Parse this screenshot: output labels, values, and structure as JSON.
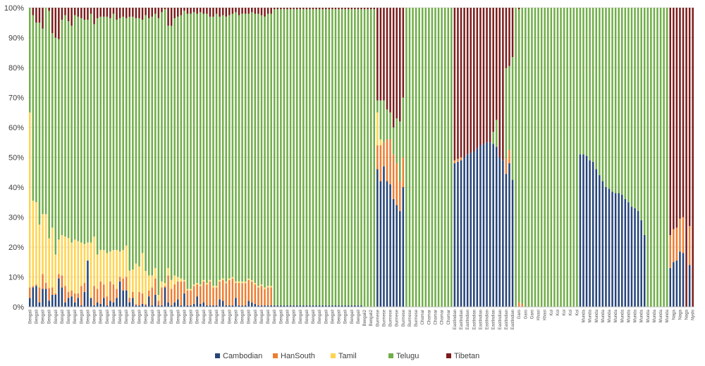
{
  "chart_data": {
    "type": "bar",
    "stacked": "percent",
    "title": "",
    "xlabel": "",
    "ylabel": "",
    "ylim": [
      0,
      100
    ],
    "y_ticks": [
      "0%",
      "10%",
      "20%",
      "30%",
      "40%",
      "50%",
      "60%",
      "70%",
      "80%",
      "90%",
      "100%"
    ],
    "grid": true,
    "legend_position": "bottom",
    "categories": [
      "Bengali",
      "Bengali",
      "Bengali",
      "Bengali",
      "Bengali",
      "Bengali",
      "Bengali",
      "Bengali",
      "Bengali",
      "Bengali",
      "Bengali",
      "Bengali",
      "Bengali",
      "Bengali",
      "Bengali",
      "Bengali",
      "Bengali",
      "Bengali",
      "Bengali",
      "Bengali",
      "Bengali",
      "Bengali",
      "Bengali",
      "Bengali",
      "Bengali",
      "Bengali",
      "Bengali",
      "Bengali",
      "Bengali",
      "Bengali",
      "Bengali",
      "Bengali",
      "Bengali",
      "Bengali",
      "Bengali",
      "Bengali",
      "Bengali",
      "Bengali",
      "Bengali",
      "Bengali",
      "Bengali",
      "Bengali",
      "Bengali",
      "Bengali",
      "Bengali",
      "Bengali",
      "Bengali",
      "Bengali",
      "Bengali",
      "Bengali",
      "Bengali",
      "Bengali",
      "Bengali",
      "Bengali",
      "Bengali",
      "Bengali",
      "Bengali",
      "Bengali",
      "Bengali",
      "Bengali",
      "Bengali",
      "Bengali",
      "Bengali",
      "Bengali",
      "Bengali",
      "Bengali",
      "Bengali",
      "Bengali",
      "Bengali",
      "Bengali",
      "Bengali",
      "Bengali",
      "Bengali",
      "Bengali",
      "Bengali",
      "Bengali",
      "Bengali",
      "Bengali",
      "Bengali",
      "Bengali",
      "Bengali",
      "Bengali",
      "Bengali",
      "Bengali",
      "Bengali",
      "Bengali",
      "Bengali",
      "Bengali",
      "Bengali",
      "Bengali",
      "Bengali",
      "Bengali",
      "Bengali",
      "Bengali",
      "Bengali",
      "Bengali",
      "Bengali",
      "Bengali",
      "Bengali",
      "Bengali",
      "Bengali",
      "Bengali",
      "Bengali",
      "Bengali",
      "Bengali2",
      "Bengali2",
      "Bengali2",
      "Bengali2",
      "Burmese",
      "Burmese",
      "Burmese",
      "Burmese",
      "Burmese",
      "Burmese",
      "Burmese",
      "Burmese",
      "Burmese",
      "Burmese",
      "Burmese",
      "Burmese",
      "Burmese",
      "Burmese",
      "Chamar",
      "Chamar",
      "Chamar",
      "Chamar",
      "Chamar",
      "Chamar",
      "Chamar",
      "Chamar",
      "Chamar",
      "Chamar",
      "EastIndian",
      "EastIndian",
      "EastIndian",
      "EastIndian",
      "EastIndian",
      "EastIndian",
      "EastIndian",
      "EastIndian",
      "EastIndian",
      "EastIndian",
      "EastIndian",
      "EastIndian",
      "EastIndian",
      "EastIndian",
      "EastIndian",
      "EastIndian",
      "EastIndian",
      "EastIndian",
      "EastIndian",
      "EastIndian",
      "Garo",
      "Garo",
      "Garo",
      "Garo",
      "Garo",
      "Garo",
      "Khasi",
      "Khasi",
      "Khasi",
      "Khasi",
      "Kol",
      "Kol",
      "Kol",
      "Kol",
      "Kol",
      "Kol",
      "Kol",
      "Kol",
      "Kol",
      "Munda",
      "Munda",
      "Munda",
      "Munda",
      "Munda",
      "Munda",
      "Munda",
      "Munda",
      "Munda",
      "Munda",
      "Munda",
      "Munda",
      "Munda",
      "Munda",
      "Munda",
      "Munda",
      "Munda",
      "Munda",
      "Munda",
      "Munda",
      "Munda",
      "Munda",
      "Munda",
      "Munda",
      "Munda",
      "Munda",
      "Munda",
      "Munda",
      "Naga",
      "Naga",
      "Naga",
      "Naga",
      "Naga",
      "Naga",
      "Nyshi",
      "Nyshi"
    ],
    "series": [
      {
        "name": "Cambodian",
        "color": "#264478",
        "values": [
          3,
          6.5,
          7,
          1.5,
          6,
          6,
          2,
          4,
          4,
          9.5,
          6.5,
          1.5,
          3,
          3.5,
          1.5,
          3,
          0.5,
          5,
          15.5,
          3,
          0.5,
          1.5,
          1,
          3,
          0.5,
          2,
          1.5,
          3,
          8.5,
          5.5,
          5.5,
          1.5,
          3,
          0.5,
          0.5,
          1,
          0.5,
          3.5,
          0.5,
          4,
          0.5,
          0.5,
          6.5,
          1.5,
          0.5,
          1.5,
          2.5,
          0.5,
          4.5,
          0.5,
          0.5,
          1,
          3.5,
          1,
          1.5,
          0.5,
          0.5,
          0.5,
          0.5,
          2.5,
          2,
          0.5,
          0.5,
          0.5,
          3,
          0.5,
          0.5,
          0.5,
          2,
          1.5,
          1,
          0.5,
          0.5,
          0.5,
          0.5,
          0.5,
          0.5,
          0.5,
          0.5,
          0.5,
          0.5,
          0.5,
          0.5,
          0.5,
          0.5,
          0.5,
          0.5,
          0.5,
          0.5,
          0.5,
          0.5,
          0.5,
          0.5,
          0.5,
          0.5,
          0.5,
          0.5,
          0.5,
          0.5,
          0.5,
          0.5,
          0.5,
          0.5,
          0.5,
          0,
          0,
          0,
          0,
          46,
          42,
          47,
          42,
          41,
          36,
          34,
          32,
          40,
          0,
          0,
          0,
          0,
          0,
          0,
          0,
          0,
          0,
          0,
          0,
          0,
          0,
          0,
          0,
          48,
          48.5,
          49,
          50,
          51,
          51.5,
          52,
          53,
          54,
          54.5,
          55,
          55,
          54.5,
          53.5,
          50,
          49,
          44,
          48,
          42.5,
          0,
          0,
          0,
          0,
          0,
          0,
          0,
          0,
          0,
          0,
          0,
          0,
          0,
          0,
          0,
          0,
          0,
          0,
          0,
          0,
          51,
          51,
          50.5,
          49,
          48.5,
          46,
          44,
          42,
          40,
          39.5,
          38.5,
          38,
          38,
          37.5,
          36,
          35,
          33.5,
          33,
          32,
          29,
          24,
          0,
          0,
          0,
          0,
          0,
          0,
          0,
          13,
          15,
          15.5,
          18.5,
          18,
          0,
          14,
          0
        ]
      },
      {
        "name": "HanSouth",
        "color": "#ED7D31",
        "values": [
          3.5,
          0.5,
          0.5,
          5,
          5,
          2,
          4,
          2.5,
          0.5,
          1.5,
          4,
          5.5,
          2,
          2,
          3,
          1.5,
          6.5,
          3,
          0,
          0,
          6.5,
          4.5,
          7.5,
          4.5,
          3,
          6.5,
          6,
          3,
          1.5,
          4,
          4.5,
          1.5,
          2,
          0.5,
          4.5,
          3.5,
          0.5,
          2,
          6,
          5.5,
          1.5,
          6,
          0.5,
          9,
          5.5,
          6,
          6,
          8,
          4,
          5,
          5,
          6,
          4,
          6,
          7,
          7,
          8,
          6,
          6,
          6,
          7,
          7.5,
          8.5,
          9,
          5,
          7.5,
          7.5,
          7.5,
          7,
          7,
          6.5,
          6,
          6.5,
          5.5,
          6,
          6,
          0,
          0,
          0,
          0,
          0,
          0,
          0,
          0,
          0,
          0,
          0,
          0,
          0,
          0,
          0,
          0,
          0,
          0,
          0,
          0,
          0,
          0,
          0,
          0,
          0,
          0,
          0,
          0,
          0,
          0,
          0,
          0,
          8,
          12,
          8,
          14,
          15,
          15,
          14,
          10,
          10,
          0,
          0,
          0,
          0,
          0,
          0,
          0,
          0,
          0,
          0,
          0,
          0,
          0,
          0,
          0,
          1,
          1,
          1,
          0,
          0,
          0,
          0,
          0,
          0,
          0,
          0,
          0,
          0,
          0,
          0,
          0,
          5,
          4.5,
          0,
          0,
          1.5,
          1,
          0,
          0,
          0,
          0,
          0,
          0,
          0,
          0,
          0,
          0,
          0,
          0,
          0,
          0,
          0,
          0,
          0,
          0,
          0,
          0,
          0,
          0,
          0,
          0,
          0,
          0,
          0,
          0,
          0,
          0,
          0,
          0,
          0,
          0,
          0,
          0,
          0,
          0,
          0,
          0,
          0,
          0,
          0,
          0,
          0,
          11,
          11,
          11,
          11,
          12,
          0,
          13,
          0
        ]
      },
      {
        "name": "Tamil",
        "color": "#FFD34F",
        "values": [
          58.5,
          28.5,
          27.5,
          21,
          20,
          23,
          16,
          20,
          13,
          11.5,
          13.5,
          16.5,
          18,
          16,
          18,
          17.5,
          14.5,
          13,
          6,
          18.5,
          16.5,
          11.5,
          10.5,
          11.5,
          14.5,
          10,
          11.5,
          13,
          8.5,
          9.5,
          10.5,
          9,
          7.5,
          13.5,
          8.5,
          13.5,
          11,
          5,
          4,
          3.5,
          2,
          2,
          1,
          2.5,
          3,
          3,
          1.5,
          1,
          0.5,
          0.5,
          0.5,
          0.5,
          0.5,
          0.5,
          0.5,
          0.5,
          0.5,
          0.5,
          0.5,
          0.5,
          0.5,
          0.5,
          0.5,
          0.5,
          0.5,
          0.5,
          0.5,
          0.5,
          0.5,
          0.5,
          0.5,
          0.5,
          0.5,
          0.5,
          0.5,
          0.5,
          0,
          0,
          0,
          0,
          0,
          0,
          0,
          0,
          0,
          0,
          0,
          0,
          0,
          0,
          0,
          0,
          0,
          0,
          0,
          0,
          0,
          0,
          0,
          0,
          0,
          0,
          0,
          0,
          0,
          0,
          0,
          0,
          11,
          2,
          0,
          0,
          0,
          0,
          0,
          0,
          0,
          0,
          0,
          0,
          0,
          0,
          0,
          0,
          0,
          0,
          0,
          0,
          0,
          0,
          0,
          0,
          0,
          0,
          0,
          0,
          0,
          0,
          0,
          0,
          0,
          0,
          0,
          0,
          0,
          0,
          0,
          0,
          0,
          0,
          0,
          0,
          0,
          0,
          0,
          0,
          0,
          0,
          0,
          0,
          0,
          0,
          0,
          0,
          0,
          0,
          0,
          0,
          0,
          0,
          0,
          0,
          0,
          0,
          0,
          0,
          0,
          0,
          0,
          0,
          0,
          0,
          0,
          0,
          0,
          0,
          0,
          0,
          0,
          0,
          0,
          0,
          0,
          0,
          0,
          0,
          0,
          0,
          0,
          0,
          0,
          0,
          0,
          0,
          0,
          0,
          0
        ]
      },
      {
        "name": "Telugu",
        "color": "#70AD47",
        "values": [
          35,
          62,
          60,
          67.5,
          62,
          69,
          73,
          65,
          72.5,
          67,
          72,
          74,
          72.5,
          72.5,
          75,
          75,
          75,
          75,
          74.5,
          76.5,
          71,
          79,
          78,
          78,
          79,
          78,
          79,
          77,
          78,
          78,
          76,
          84,
          84.5,
          82,
          83,
          78,
          85.5,
          86,
          86.5,
          85,
          93,
          90,
          92,
          81,
          85,
          86,
          87,
          88,
          90,
          92,
          92,
          91,
          90,
          91,
          89,
          90,
          88,
          90,
          91,
          88,
          88,
          89,
          88,
          88,
          90,
          89,
          90,
          90,
          89,
          90,
          90,
          91,
          90,
          91,
          91,
          91,
          99,
          99,
          99,
          99,
          99,
          99,
          99,
          99,
          99,
          99,
          99,
          99,
          99,
          99,
          99,
          99,
          99,
          99,
          99,
          99,
          99,
          99,
          99,
          99,
          99,
          99,
          99,
          99,
          99.5,
          99.5,
          99.5,
          99.5,
          4,
          13,
          14,
          10,
          9,
          9,
          15,
          20,
          20,
          100,
          100,
          100,
          100,
          100,
          100,
          100,
          100,
          100,
          100,
          100,
          100,
          100,
          100,
          100,
          0,
          0,
          0,
          0,
          0,
          0,
          0,
          0,
          0,
          0,
          0,
          0,
          4,
          9,
          0,
          0,
          30,
          28,
          41,
          100,
          98,
          99,
          100,
          100,
          100,
          100,
          100,
          100,
          100,
          100,
          100,
          100,
          100,
          100,
          100,
          100,
          100,
          100,
          100,
          49,
          49,
          49.5,
          51,
          51.5,
          54,
          56,
          58,
          60,
          60.5,
          61.5,
          62,
          62,
          62.5,
          64,
          65,
          66.5,
          67,
          68,
          71,
          76,
          100,
          100,
          100,
          100,
          100,
          100,
          100,
          0,
          0,
          0,
          0,
          0,
          0,
          0,
          0
        ]
      },
      {
        "name": "Tibetan",
        "color": "#7B1C1C",
        "values": [
          0,
          2.5,
          5,
          5,
          7,
          0,
          1,
          8.5,
          10,
          10.5,
          4,
          2.5,
          4.5,
          6,
          2.5,
          3,
          3.5,
          4,
          4,
          2,
          5.5,
          3.5,
          3,
          3,
          3,
          3.5,
          2,
          4,
          3.5,
          3,
          3.5,
          3,
          3,
          3.5,
          3.5,
          4,
          2.5,
          3.5,
          3,
          2,
          3.5,
          1.5,
          0.5,
          6,
          6,
          3.5,
          3,
          2.5,
          1,
          2,
          2,
          1.5,
          2,
          1.5,
          2,
          2,
          3,
          3,
          2,
          3,
          2.5,
          3,
          2.5,
          2,
          1.5,
          2.5,
          2,
          2,
          2,
          1.5,
          2,
          2,
          2.5,
          3,
          2,
          2,
          0.5,
          0.5,
          0.5,
          0.5,
          0.5,
          0.5,
          0.5,
          0.5,
          0.5,
          0.5,
          0.5,
          0.5,
          0.5,
          0.5,
          0.5,
          0.5,
          0.5,
          0.5,
          0.5,
          0.5,
          0.5,
          0.5,
          0.5,
          0.5,
          0.5,
          0.5,
          0.5,
          0.5,
          0.5,
          0.5,
          0.5,
          0.5,
          31,
          31,
          31,
          34,
          35,
          40,
          37,
          38,
          30,
          0,
          0,
          0,
          0,
          0,
          0,
          0,
          0,
          0,
          0,
          0,
          0,
          0,
          0,
          0,
          51,
          50.5,
          50,
          50,
          49,
          48.5,
          48,
          47,
          46,
          45.5,
          45,
          45,
          41.5,
          37.5,
          50,
          51,
          20,
          19.5,
          16.5,
          0,
          0.5,
          0,
          0,
          0,
          0,
          0,
          0,
          0,
          0,
          0,
          0,
          0,
          0,
          0,
          0,
          0,
          0,
          0,
          0,
          0,
          0,
          0,
          0,
          0,
          0,
          0,
          0,
          0,
          0,
          0,
          0,
          0,
          0,
          0,
          0,
          0,
          0,
          0,
          0,
          0,
          0,
          0,
          0,
          0,
          0,
          0,
          0,
          76,
          74,
          73.5,
          70.5,
          70,
          100,
          73,
          100
        ]
      }
    ]
  }
}
